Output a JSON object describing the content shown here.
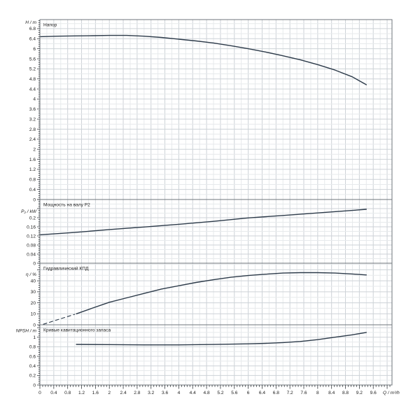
{
  "chart_data": {
    "type": "line",
    "title": "",
    "legend_position": "none",
    "grid": true,
    "x_axis": {
      "label": "Q / m³/h",
      "min": 0,
      "max": 10.14,
      "label_step": 0.4,
      "label_max": 9.6,
      "minor_step": 0.08,
      "gridline_minor_step": 0.2,
      "tick_labels": [
        "0",
        "0.4",
        "0.8",
        "1.2",
        "1.6",
        "2",
        "2.4",
        "2.8",
        "3.2",
        "3.6",
        "4",
        "4.4",
        "4.8",
        "5.2",
        "5.6",
        "6",
        "6.4",
        "6.8",
        "7.2",
        "7.6",
        "8",
        "8.4",
        "8.8",
        "9.2",
        "9.6"
      ]
    },
    "colors": {
      "curve": "#2c3a49",
      "grid_major": "#cdd2d7",
      "grid_minor": "#e7eaec",
      "border": "#6f757b",
      "text": "#1c1c1c",
      "background": "#ffffff"
    },
    "panels": [
      {
        "name": "head",
        "axis_label": "H / m",
        "title": "Напор",
        "y_min": 0,
        "y_max": 7.16,
        "label_step": 0.4,
        "label_max": 6.8,
        "series": [
          {
            "name": "head-curve",
            "dashed": false,
            "points": [
              [
                0,
                6.48
              ],
              [
                0.5,
                6.5
              ],
              [
                1,
                6.51
              ],
              [
                1.5,
                6.52
              ],
              [
                2,
                6.53
              ],
              [
                2.5,
                6.53
              ],
              [
                3,
                6.5
              ],
              [
                3.5,
                6.45
              ],
              [
                4,
                6.38
              ],
              [
                4.5,
                6.31
              ],
              [
                5,
                6.23
              ],
              [
                5.5,
                6.12
              ],
              [
                6,
                6.0
              ],
              [
                6.5,
                5.87
              ],
              [
                7,
                5.72
              ],
              [
                7.5,
                5.56
              ],
              [
                8,
                5.37
              ],
              [
                8.5,
                5.15
              ],
              [
                9,
                4.88
              ],
              [
                9.4,
                4.57
              ]
            ]
          }
        ]
      },
      {
        "name": "power",
        "axis_label": "P₂ / kW",
        "title": "Мощность на валу P2",
        "y_min": 0,
        "y_max": 0.28,
        "label_step": 0.04,
        "label_max": 0.2,
        "series": [
          {
            "name": "power-curve",
            "dashed": false,
            "points": [
              [
                0,
                0.125
              ],
              [
                1,
                0.135
              ],
              [
                2,
                0.148
              ],
              [
                3,
                0.159
              ],
              [
                4,
                0.171
              ],
              [
                5,
                0.184
              ],
              [
                6,
                0.199
              ],
              [
                7,
                0.21
              ],
              [
                8,
                0.221
              ],
              [
                9,
                0.232
              ],
              [
                9.4,
                0.237
              ]
            ]
          }
        ]
      },
      {
        "name": "efficiency",
        "axis_label": "η / %",
        "title": "Гидравлический КПД",
        "y_min": 0,
        "y_max": 56,
        "label_step": 10,
        "label_max": 40,
        "series": [
          {
            "name": "efficiency-curve-dashed",
            "dashed": true,
            "points": [
              [
                0.1,
                0.5
              ],
              [
                0.5,
                4.5
              ],
              [
                1,
                9.5
              ]
            ]
          },
          {
            "name": "efficiency-curve",
            "dashed": false,
            "points": [
              [
                1.05,
                10
              ],
              [
                1.5,
                15
              ],
              [
                2,
                20.5
              ],
              [
                2.5,
                24.5
              ],
              [
                3,
                28.5
              ],
              [
                3.5,
                32.5
              ],
              [
                4,
                35.5
              ],
              [
                4.5,
                38.5
              ],
              [
                5,
                41
              ],
              [
                5.5,
                43.2
              ],
              [
                6,
                44.8
              ],
              [
                6.5,
                46
              ],
              [
                7,
                47
              ],
              [
                7.5,
                47.4
              ],
              [
                8,
                47.4
              ],
              [
                8.5,
                47
              ],
              [
                9,
                46.2
              ],
              [
                9.4,
                45.3
              ]
            ]
          }
        ]
      },
      {
        "name": "npsh",
        "axis_label": "NPSH / m",
        "title": "Кривые кавитационного запаса",
        "y_min": 0,
        "y_max": 1.26,
        "label_step": 0.2,
        "label_max": 1,
        "series": [
          {
            "name": "npsh-curve",
            "dashed": false,
            "points": [
              [
                1.05,
                0.85
              ],
              [
                2,
                0.845
              ],
              [
                3,
                0.84
              ],
              [
                4,
                0.84
              ],
              [
                5,
                0.848
              ],
              [
                6,
                0.862
              ],
              [
                6.5,
                0.872
              ],
              [
                7,
                0.888
              ],
              [
                7.5,
                0.912
              ],
              [
                8,
                0.95
              ],
              [
                8.5,
                1.0
              ],
              [
                9,
                1.05
              ],
              [
                9.4,
                1.1
              ]
            ]
          }
        ]
      }
    ]
  }
}
